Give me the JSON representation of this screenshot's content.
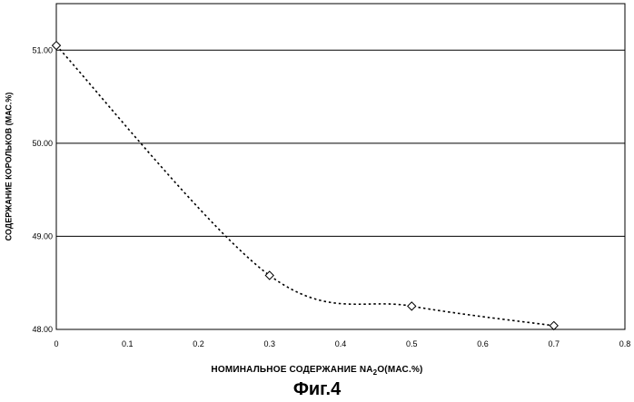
{
  "chart_data": {
    "type": "line",
    "title": "",
    "xlabel_parts": [
      "НОМИНАЛЬНОЕ СОДЕРЖАНИЕ NA",
      "2",
      "O(МАС.%)"
    ],
    "ylabel": "СОДЕРЖАНИЕ КОРОЛЬКОВ (МАС.%)",
    "xlim": [
      0,
      0.8
    ],
    "ylim": [
      48.0,
      51.5
    ],
    "xticks": [
      "0",
      "0.1",
      "0.2",
      "0.3",
      "0.4",
      "0.5",
      "0.6",
      "0.7",
      "0.8"
    ],
    "xtick_values": [
      0,
      0.1,
      0.2,
      0.3,
      0.4,
      0.5,
      0.6,
      0.7,
      0.8
    ],
    "yticks": [
      "48.00",
      "49.00",
      "50.00",
      "51.00"
    ],
    "ytick_values": [
      48.0,
      49.0,
      50.0,
      51.0
    ],
    "grid": "horizontal",
    "line_style": "dotted",
    "marker": "diamond",
    "series": [
      {
        "x": [
          0,
          0.3,
          0.5,
          0.7
        ],
        "y": [
          51.05,
          48.58,
          48.25,
          48.04
        ]
      }
    ]
  },
  "caption": "Фиг.4"
}
